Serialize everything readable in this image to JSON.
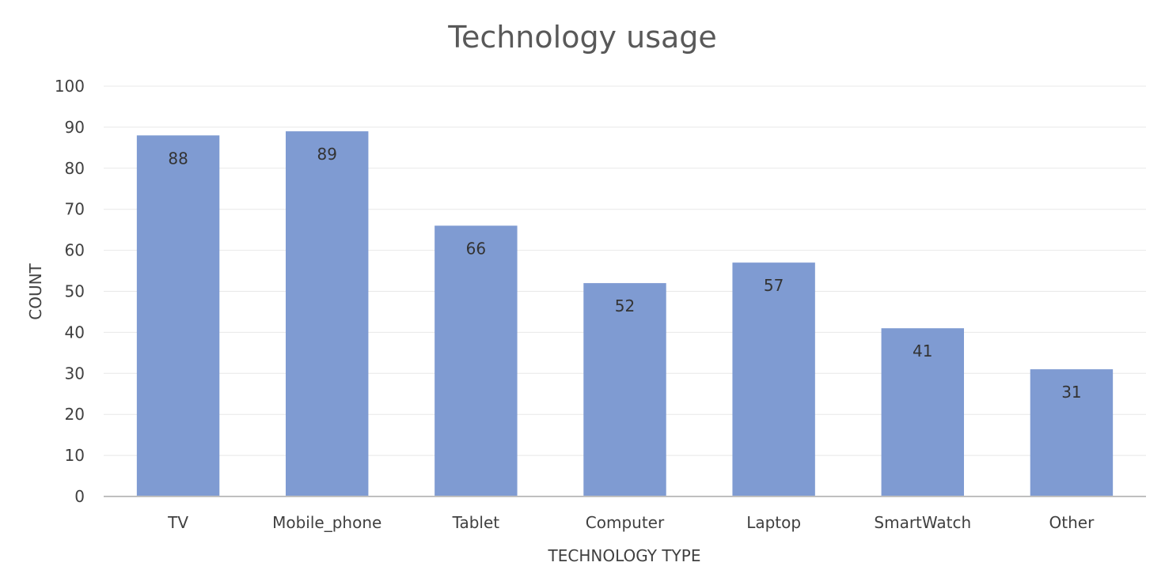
{
  "chart_data": {
    "type": "bar",
    "title": "Technology usage",
    "xlabel": "TECHNOLOGY TYPE",
    "ylabel": "COUNT",
    "categories": [
      "TV",
      "Mobile_phone",
      "Tablet",
      "Computer",
      "Laptop",
      "SmartWatch",
      "Other"
    ],
    "values": [
      88,
      89,
      66,
      52,
      57,
      41,
      31
    ],
    "ylim": [
      0,
      100
    ],
    "yticks": [
      0,
      10,
      20,
      30,
      40,
      50,
      60,
      70,
      80,
      90,
      100
    ],
    "grid": true,
    "legend": "none",
    "bar_color": "#7f9bd2",
    "data_labels": "inside-end"
  }
}
